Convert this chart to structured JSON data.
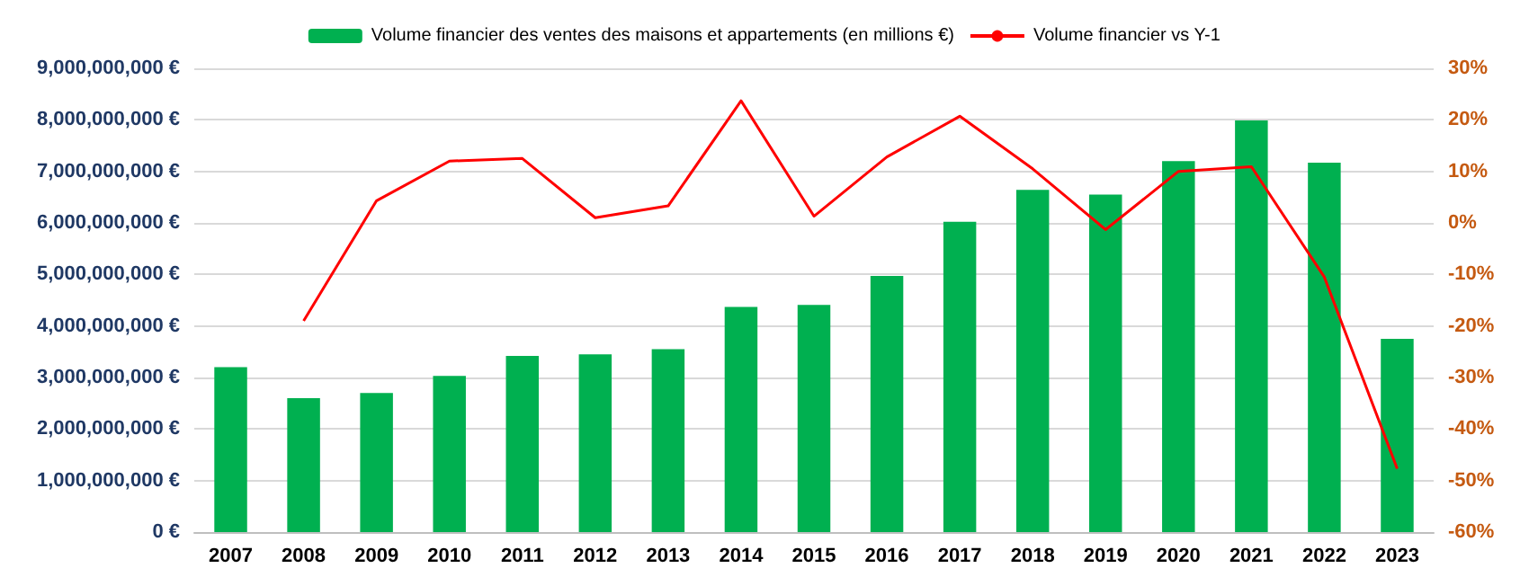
{
  "chart_data": {
    "type": "bar",
    "categories": [
      "2007",
      "2008",
      "2009",
      "2010",
      "2011",
      "2012",
      "2013",
      "2014",
      "2015",
      "2016",
      "2017",
      "2018",
      "2019",
      "2020",
      "2021",
      "2022",
      "2023"
    ],
    "series": [
      {
        "name": "Volume financier des ventes des maisons et appartements (en millions €)",
        "color": "#00b050",
        "values": [
          3200000000,
          2600000000,
          2700000000,
          3030000000,
          3420000000,
          3450000000,
          3550000000,
          4370000000,
          4410000000,
          4970000000,
          6020000000,
          6640000000,
          6550000000,
          7200000000,
          7990000000,
          7170000000,
          3750000000
        ]
      },
      {
        "name": "Volume financier vs Y-1",
        "type": "line",
        "axis": "y2",
        "color": "#ff0000",
        "values": [
          null,
          -19,
          4.3,
          12,
          12.5,
          1,
          3.3,
          23.7,
          1.3,
          12.8,
          20.7,
          10.5,
          -1.3,
          10,
          10.9,
          -10.5,
          -47.7
        ]
      }
    ],
    "ylim": [
      0,
      9000000000
    ],
    "yticks": [
      {
        "value": 0,
        "label": "0 €"
      },
      {
        "value": 1000000000,
        "label": "1,000,000,000 €"
      },
      {
        "value": 2000000000,
        "label": "2,000,000,000 €"
      },
      {
        "value": 3000000000,
        "label": "3,000,000,000 €"
      },
      {
        "value": 4000000000,
        "label": "4,000,000,000 €"
      },
      {
        "value": 5000000000,
        "label": "5,000,000,000 €"
      },
      {
        "value": 6000000000,
        "label": "6,000,000,000 €"
      },
      {
        "value": 7000000000,
        "label": "7,000,000,000 €"
      },
      {
        "value": 8000000000,
        "label": "8,000,000,000 €"
      },
      {
        "value": 9000000000,
        "label": "9,000,000,000 €"
      }
    ],
    "y2lim": [
      -60,
      30
    ],
    "y2ticks": [
      {
        "value": -60,
        "label": "-60%"
      },
      {
        "value": -50,
        "label": "-50%"
      },
      {
        "value": -40,
        "label": "-40%"
      },
      {
        "value": -30,
        "label": "-30%"
      },
      {
        "value": -20,
        "label": "-20%"
      },
      {
        "value": -10,
        "label": "-10%"
      },
      {
        "value": 0,
        "label": "0%"
      },
      {
        "value": 10,
        "label": "10%"
      },
      {
        "value": 20,
        "label": "20%"
      },
      {
        "value": 30,
        "label": "30%"
      }
    ],
    "grid": "y",
    "legend": "top",
    "marker": "none"
  }
}
